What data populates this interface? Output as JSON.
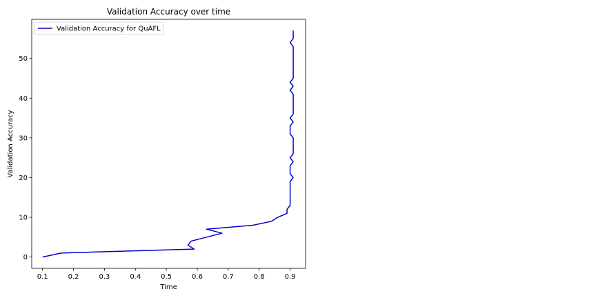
{
  "chart_data": {
    "type": "line",
    "title": "Validation Accuracy over time",
    "xlabel": "Time",
    "ylabel": "Validation Accuracy",
    "xlim": [
      0.065,
      0.95
    ],
    "ylim": [
      -2.85,
      59.85
    ],
    "xticks": [
      0.1,
      0.2,
      0.3,
      0.4,
      0.5,
      0.6,
      0.7,
      0.8,
      0.9
    ],
    "xtick_labels": [
      "0.1",
      "0.2",
      "0.3",
      "0.4",
      "0.5",
      "0.6",
      "0.7",
      "0.8",
      "0.9"
    ],
    "yticks": [
      0,
      10,
      20,
      30,
      40,
      50
    ],
    "ytick_labels": [
      "0",
      "10",
      "20",
      "30",
      "40",
      "50"
    ],
    "grid": false,
    "legend_position": "top-left",
    "series": [
      {
        "name": "Validation Accuracy for QuAFL",
        "color": "#0000cc",
        "x": [
          0.1,
          0.16,
          0.59,
          0.57,
          0.58,
          0.63,
          0.68,
          0.63,
          0.78,
          0.84,
          0.86,
          0.89,
          0.89,
          0.9,
          0.9,
          0.9,
          0.9,
          0.9,
          0.9,
          0.9,
          0.91,
          0.9,
          0.9,
          0.9,
          0.91,
          0.9,
          0.91,
          0.91,
          0.91,
          0.91,
          0.91,
          0.9,
          0.9,
          0.9,
          0.91,
          0.9,
          0.91,
          0.91,
          0.91,
          0.91,
          0.91,
          0.91,
          0.9,
          0.91,
          0.9,
          0.91,
          0.91,
          0.91,
          0.91,
          0.91,
          0.91,
          0.91,
          0.91,
          0.91,
          0.9,
          0.91,
          0.91,
          0.91
        ],
        "y": [
          0,
          1,
          2,
          3,
          4,
          5,
          6,
          7,
          8,
          9,
          10,
          11,
          12,
          13,
          14,
          15,
          16,
          17,
          18,
          19,
          20,
          21,
          22,
          23,
          24,
          25,
          26,
          27,
          28,
          29,
          30,
          31,
          32,
          33,
          34,
          35,
          36,
          37,
          38,
          39,
          40,
          41,
          42,
          43,
          44,
          45,
          46,
          47,
          48,
          49,
          50,
          51,
          52,
          53,
          54,
          55,
          56,
          57
        ]
      }
    ]
  }
}
